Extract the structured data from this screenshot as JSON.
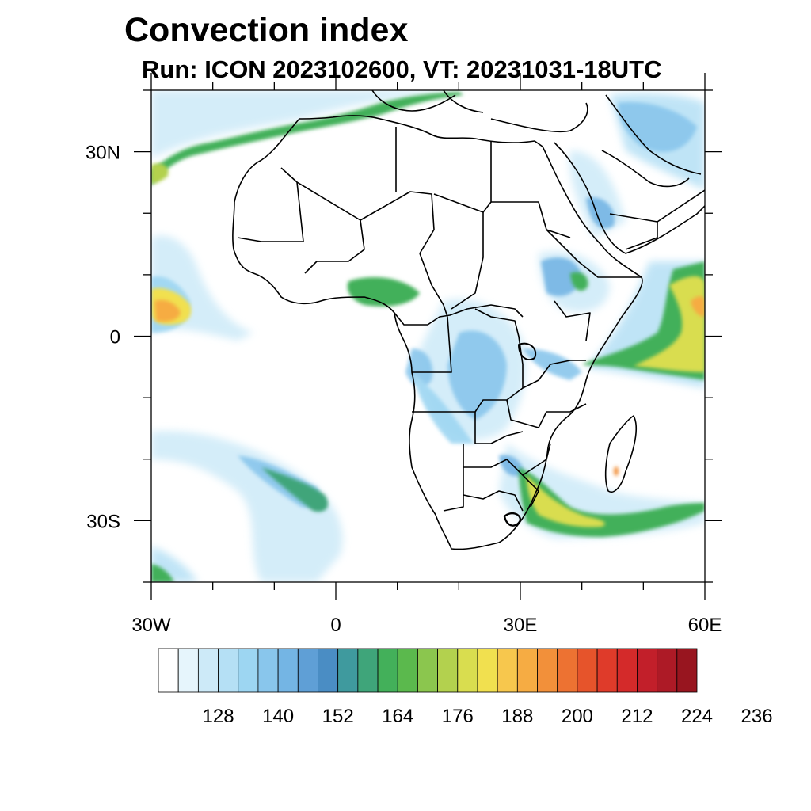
{
  "title": "Convection index",
  "subtitle": "Run: ICON 2023102600,  VT: 20231031-18UTC",
  "map": {
    "region": "Africa",
    "projection": "cylindrical equidistant",
    "lon_range": [
      -30,
      60
    ],
    "lat_range": [
      -40,
      40
    ],
    "x_ticks": [
      {
        "lon": -30,
        "label": "30W"
      },
      {
        "lon": 0,
        "label": "0"
      },
      {
        "lon": 30,
        "label": "30E"
      },
      {
        "lon": 60,
        "label": "60E"
      }
    ],
    "y_ticks": [
      {
        "lat": 30,
        "label": "30N"
      },
      {
        "lat": 0,
        "label": "0"
      },
      {
        "lat": -30,
        "label": "30S"
      }
    ],
    "minor_tick_step_deg": 10,
    "border_color": "#000000",
    "high_value_areas": [
      {
        "name": "North Atlantic band",
        "level": "green"
      },
      {
        "name": "Tropical Atlantic patch",
        "level": "orange"
      },
      {
        "name": "Gulf of Guinea coast",
        "level": "green"
      },
      {
        "name": "Congo basin",
        "level": "blue"
      },
      {
        "name": "Ethiopian highlands",
        "level": "green"
      },
      {
        "name": "Western Indian Ocean",
        "level": "yellow"
      },
      {
        "name": "Mozambique / SE Africa",
        "level": "yellow"
      },
      {
        "name": "Madagascar",
        "level": "orange"
      },
      {
        "name": "South Atlantic arc",
        "level": "green"
      }
    ]
  },
  "colorbar": {
    "labels": [
      "128",
      "140",
      "152",
      "164",
      "176",
      "188",
      "200",
      "212",
      "224",
      "236"
    ],
    "colors": [
      "#ffffff",
      "#e6f5fc",
      "#cdeaf8",
      "#b5e0f5",
      "#9dd6f2",
      "#89c6ec",
      "#74b5e4",
      "#5f9fd6",
      "#4a8dc4",
      "#3f9a9e",
      "#3fa57a",
      "#43b05a",
      "#5bb94d",
      "#8bc64e",
      "#b3d14e",
      "#d9dd4f",
      "#f1e04f",
      "#f7c74d",
      "#f6ac43",
      "#f2903a",
      "#ed7232",
      "#e6542b",
      "#df3b2a",
      "#d42a2a",
      "#c21f2a",
      "#ad1a26",
      "#98151f"
    ]
  }
}
